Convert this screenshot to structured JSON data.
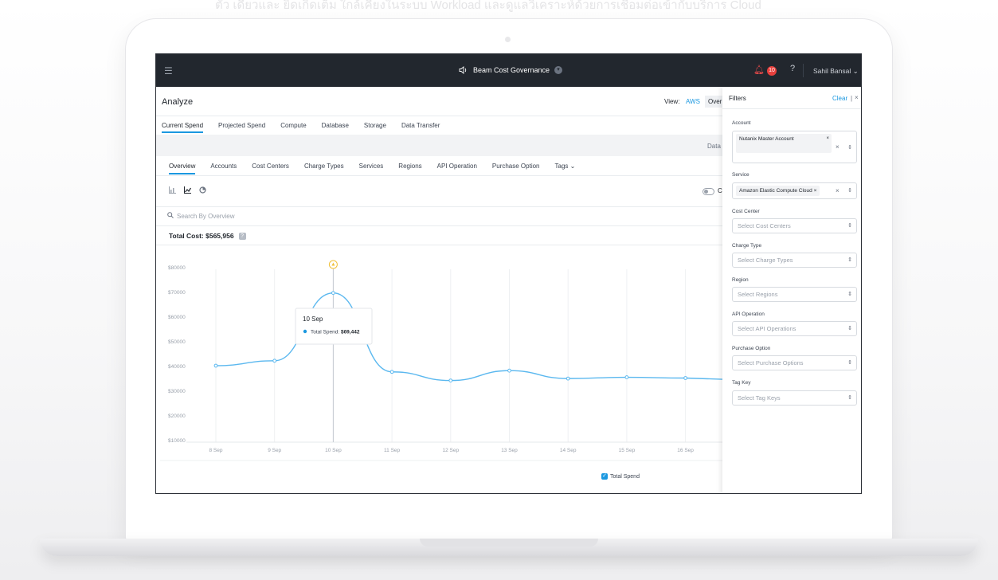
{
  "background_text": "ตัว เดียวและ ยิดเกิดเต็ม ใกล้เคียงในระบบ Workload และดูแลวิเคราะห์ด้วยการเชื่อมต่อเข้ากับบริการ Cloud",
  "app": {
    "title": "Beam Cost Governance",
    "notification_count": "10",
    "help": "?",
    "user": "Sahil Bansal"
  },
  "header": {
    "page_title": "Analyze",
    "view_label": "View:",
    "view_aws": "AWS",
    "view_over": "Over"
  },
  "main_tabs": [
    "Current Spend",
    "Projected Spend",
    "Compute",
    "Database",
    "Storage",
    "Data Transfer"
  ],
  "data_label": "Data",
  "sub_tabs": [
    "Overview",
    "Accounts",
    "Cost Centers",
    "Charge Types",
    "Services",
    "Regions",
    "API Operation",
    "Purchase Option",
    "Tags"
  ],
  "toggle_letter": "C",
  "search_placeholder": "Search By Overview",
  "total_cost": "Total Cost: $565,956",
  "chart_data": {
    "type": "line",
    "x": [
      "8 Sep",
      "9 Sep",
      "10 Sep",
      "11 Sep",
      "12 Sep",
      "13 Sep",
      "14 Sep",
      "15 Sep",
      "16 Sep"
    ],
    "y_ticks": [
      "$80000",
      "$70000",
      "$60000",
      "$50000",
      "$40000",
      "$30000",
      "$20000",
      "$10000"
    ],
    "ylim": [
      10000,
      80000
    ],
    "series": [
      {
        "name": "Total Spend",
        "values": [
          40000,
          42000,
          69442,
          37500,
          34000,
          38000,
          34800,
          35300,
          35000
        ]
      }
    ],
    "tooltip": {
      "date": "10 Sep",
      "label": "Total Spend:",
      "value": "$69,442"
    },
    "legend": "Total Spend",
    "color": "#5bb8ef"
  },
  "filters": {
    "title": "Filters",
    "clear": "Clear",
    "bar": "|",
    "close": "×",
    "account_label": "Account",
    "account_chip": "Nutanix Master Account",
    "service_label": "Service",
    "service_chip": "Amazon Elastic Compute Cloud",
    "cost_center_label": "Cost Center",
    "cost_center_ph": "Select Cost Centers",
    "charge_type_label": "Charge Type",
    "charge_type_ph": "Select Charge Types",
    "region_label": "Region",
    "region_ph": "Select Regions",
    "api_label": "API Operation",
    "api_ph": "Select API Operations",
    "purchase_label": "Purchase Option",
    "purchase_ph": "Select Purchase Options",
    "tag_label": "Tag Key",
    "tag_ph": "Select Tag Keys"
  }
}
